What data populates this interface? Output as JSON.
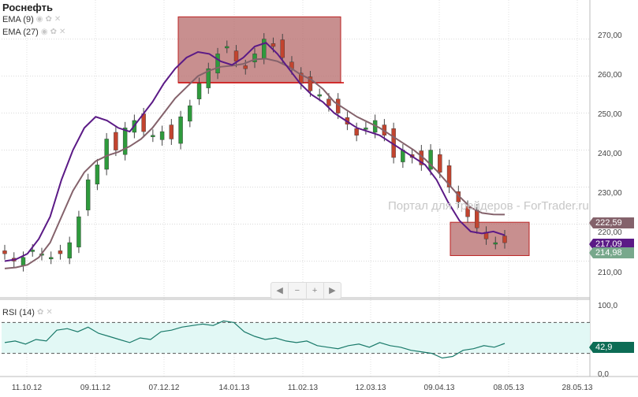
{
  "title": "Роснефть",
  "indicators": {
    "ema9": "EMA (9)",
    "ema27": "EMA (27)",
    "rsi": "RSI (14)"
  },
  "icons": [
    "eye-icon",
    "gear-icon",
    "close-icon"
  ],
  "watermark": "Портал для трейдеров - ForTrader.ru",
  "price_axis": [
    "270,00",
    "260,00",
    "250,00",
    "240,00",
    "230,00",
    "220,00",
    "210,00"
  ],
  "rsi_axis": [
    "100,0",
    "0,0"
  ],
  "rsi_levels": [
    70,
    30
  ],
  "date_axis": [
    "11.10.12",
    "09.11.12",
    "07.12.12",
    "14.01.13",
    "11.02.13",
    "12.03.13",
    "09.04.13",
    "08.05.13",
    "28.05.13"
  ],
  "tags": {
    "ema27": "222,59",
    "ema9": "217,09",
    "price": "214,98",
    "rsi": "42,9"
  },
  "navigator": {
    "prev": "◀",
    "zoom_out": "−",
    "zoom_in": "+",
    "next": "▶"
  },
  "colors": {
    "candle_up": "#2e9a3c",
    "candle_down": "#c2442f",
    "ema9": "#5b1a86",
    "ema27": "#84626b",
    "rsi_line": "#1a7a6a",
    "rsi_band": "#e2f8f5",
    "highlight_box": "#b56a6a"
  },
  "chart_data": {
    "type": "candlestick",
    "ylim": [
      205,
      278
    ],
    "rsi_ylim": [
      0,
      100
    ],
    "ema9": [
      210,
      210.5,
      212,
      216,
      222,
      232,
      240,
      246,
      249,
      248,
      246,
      245,
      249,
      253,
      258,
      262,
      265,
      266.5,
      266,
      264,
      263,
      265,
      268,
      269,
      266,
      262,
      258,
      255,
      253,
      250,
      248,
      246,
      245,
      244,
      242,
      240,
      238,
      236,
      232,
      226,
      221,
      218,
      217.5,
      218,
      217
    ],
    "ema27": [
      208,
      208.3,
      209,
      211,
      215,
      222,
      229,
      234,
      237,
      238.5,
      239.5,
      241,
      243,
      246,
      250,
      254,
      257,
      260,
      261.5,
      262.5,
      262.8,
      263.3,
      264.5,
      264.7,
      264,
      262.5,
      260.5,
      259,
      256.5,
      253,
      251,
      249,
      247.5,
      246,
      244,
      242,
      240,
      237.5,
      234.5,
      231,
      227.5,
      224.5,
      223,
      222.6,
      222.59
    ],
    "close": [
      212,
      210,
      211,
      213,
      212,
      211,
      212,
      215,
      222,
      232,
      236,
      243,
      240,
      246,
      248,
      245,
      244,
      245,
      243,
      249,
      252,
      258,
      262,
      266,
      268,
      264,
      262,
      266,
      270,
      268,
      265,
      262,
      258,
      256,
      255,
      252,
      250,
      247,
      244,
      246,
      248,
      244,
      238,
      240,
      238,
      236,
      240,
      234,
      230,
      226,
      222,
      219,
      216,
      215,
      214.98
    ],
    "rsi": [
      44,
      46,
      42,
      48,
      46,
      60,
      62,
      58,
      64,
      56,
      52,
      48,
      44,
      50,
      48,
      58,
      60,
      64,
      66,
      68,
      66,
      72,
      70,
      58,
      52,
      48,
      50,
      46,
      44,
      46,
      40,
      38,
      36,
      40,
      42,
      38,
      44,
      40,
      38,
      34,
      32,
      30,
      24,
      26,
      34,
      36,
      40,
      38,
      42.9
    ]
  }
}
